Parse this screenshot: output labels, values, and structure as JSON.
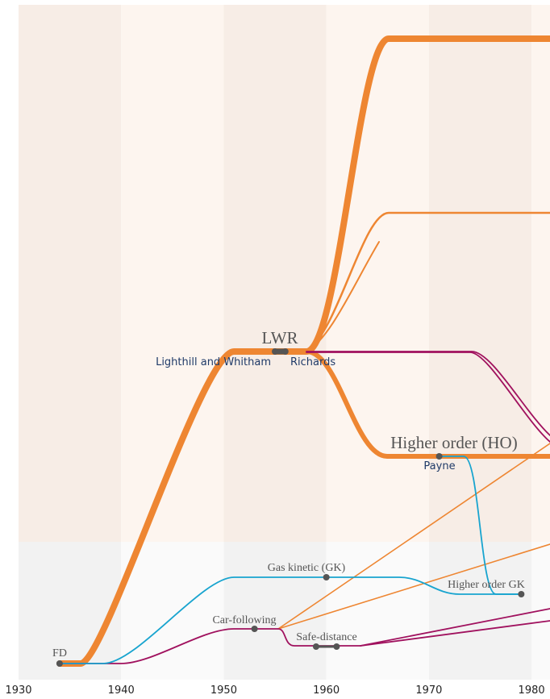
{
  "axis": {
    "xlim": [
      1930,
      1981.8
    ],
    "xticks": [
      1930,
      1940,
      1950,
      1960,
      1970,
      1980
    ]
  },
  "nodes": [
    {
      "label": "FD",
      "years": [
        1934
      ]
    },
    {
      "label": "LWR",
      "years": [
        1955,
        1956
      ]
    },
    {
      "label": "Higher order (HO)",
      "years": [
        1971
      ]
    },
    {
      "label": "Gas kinetic (GK)",
      "years": [
        1960
      ]
    },
    {
      "label": "Higher order GK",
      "years": [
        1979
      ]
    },
    {
      "label": "Car-following",
      "years": [
        1953
      ]
    },
    {
      "label": "Safe-distance",
      "years": [
        1959,
        1961
      ]
    }
  ],
  "authors": [
    "Lighthill and Whitham",
    "Richards",
    "Payne"
  ]
}
